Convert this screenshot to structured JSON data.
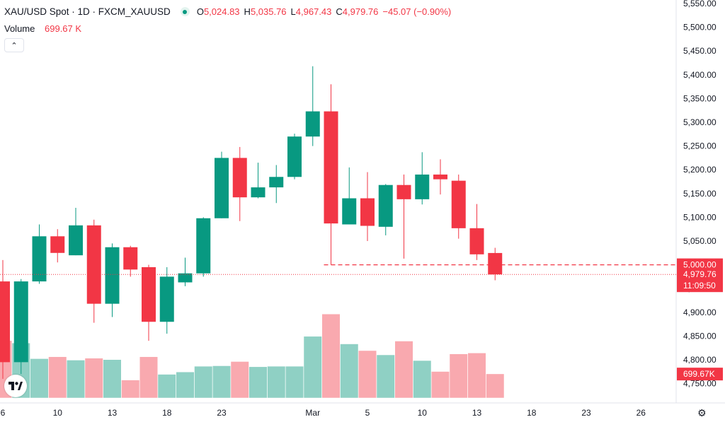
{
  "header": {
    "symbol": "XAU/USD Spot · 1D · FXCM_XAUUSD",
    "o_label": "O",
    "o_value": "5,024.83",
    "h_label": "H",
    "h_value": "5,035.76",
    "l_label": "L",
    "l_value": "4,967.43",
    "c_label": "C",
    "c_value": "4,979.76",
    "change": "−45.07 (−0.90%)"
  },
  "volume_legend": {
    "label": "Volume",
    "value": "699.67 K"
  },
  "price_tags": {
    "level": "5,000.00",
    "last": "4,979.76",
    "countdown": "11:09:50",
    "volume": "699.67K"
  },
  "colors": {
    "up": "#089981",
    "down": "#f23645",
    "vol_up": "#8fd0c4",
    "vol_down": "#f9a9af"
  },
  "icons": [
    "tradingview-logo-icon",
    "settings-icon",
    "chevron-up-icon"
  ],
  "chart_data": {
    "type": "candlestick",
    "title": "XAU/USD Spot · 1D · FXCM_XAUUSD",
    "ylim": [
      4720,
      5560
    ],
    "y_ticks": [
      "5,550.00",
      "5,500.00",
      "5,450.00",
      "5,400.00",
      "5,350.00",
      "5,300.00",
      "5,250.00",
      "5,200.00",
      "5,150.00",
      "5,100.00",
      "5,050.00",
      "5,000.00",
      "4,950.00",
      "4,900.00",
      "4,850.00",
      "4,800.00",
      "4,750.00"
    ],
    "x_ticks": [
      {
        "label": "6",
        "index": 0
      },
      {
        "label": "10",
        "index": 3
      },
      {
        "label": "13",
        "index": 6
      },
      {
        "label": "18",
        "index": 9
      },
      {
        "label": "23",
        "index": 12
      },
      {
        "label": "Mar",
        "index": 17
      },
      {
        "label": "5",
        "index": 20
      },
      {
        "label": "10",
        "index": 23
      },
      {
        "label": "13",
        "index": 26
      },
      {
        "label": "18",
        "index": 29
      },
      {
        "label": "23",
        "index": 32
      },
      {
        "label": "26",
        "index": 35
      }
    ],
    "horizontal_level": 5000,
    "candles": [
      {
        "o": 4965,
        "h": 5010,
        "l": 4760,
        "c": 4795,
        "vol": 4840
      },
      {
        "o": 4795,
        "h": 4970,
        "l": 4770,
        "c": 4965,
        "vol": 4835
      },
      {
        "o": 4965,
        "h": 5085,
        "l": 4960,
        "c": 5060,
        "vol": 4802
      },
      {
        "o": 5060,
        "h": 5075,
        "l": 5005,
        "c": 5025,
        "vol": 4806
      },
      {
        "o": 5020,
        "h": 5120,
        "l": 5020,
        "c": 5083,
        "vol": 4799
      },
      {
        "o": 5083,
        "h": 5095,
        "l": 4878,
        "c": 4918,
        "vol": 4803
      },
      {
        "o": 4918,
        "h": 5045,
        "l": 4890,
        "c": 5037,
        "vol": 4800
      },
      {
        "o": 5037,
        "h": 5040,
        "l": 4975,
        "c": 4990,
        "vol": 4757
      },
      {
        "o": 4995,
        "h": 5000,
        "l": 4840,
        "c": 4880,
        "vol": 4806
      },
      {
        "o": 4880,
        "h": 4995,
        "l": 4855,
        "c": 4975,
        "vol": 4769
      },
      {
        "o": 4963,
        "h": 5015,
        "l": 4955,
        "c": 4982,
        "vol": 4774
      },
      {
        "o": 4982,
        "h": 5100,
        "l": 4975,
        "c": 5098,
        "vol": 4786
      },
      {
        "o": 5098,
        "h": 5238,
        "l": 5098,
        "c": 5225,
        "vol": 4787
      },
      {
        "o": 5225,
        "h": 5248,
        "l": 5092,
        "c": 5142,
        "vol": 4796
      },
      {
        "o": 5142,
        "h": 5215,
        "l": 5140,
        "c": 5163,
        "vol": 4785
      },
      {
        "o": 5163,
        "h": 5210,
        "l": 5130,
        "c": 5185,
        "vol": 4786
      },
      {
        "o": 5185,
        "h": 5276,
        "l": 5180,
        "c": 5270,
        "vol": 4786
      },
      {
        "o": 5270,
        "h": 5418,
        "l": 5250,
        "c": 5323,
        "vol": 4849
      },
      {
        "o": 5323,
        "h": 5380,
        "l": 5000,
        "c": 5087,
        "vol": 4896
      },
      {
        "o": 5085,
        "h": 5205,
        "l": 5085,
        "c": 5140,
        "vol": 4833
      },
      {
        "o": 5140,
        "h": 5195,
        "l": 5050,
        "c": 5082,
        "vol": 4819
      },
      {
        "o": 5080,
        "h": 5170,
        "l": 5062,
        "c": 5168,
        "vol": 4810
      },
      {
        "o": 5168,
        "h": 5190,
        "l": 5013,
        "c": 5138,
        "vol": 4839
      },
      {
        "o": 5138,
        "h": 5237,
        "l": 5127,
        "c": 5190,
        "vol": 4798
      },
      {
        "o": 5190,
        "h": 5222,
        "l": 5148,
        "c": 5180,
        "vol": 4775
      },
      {
        "o": 5177,
        "h": 5190,
        "l": 5055,
        "c": 5077,
        "vol": 4812
      },
      {
        "o": 5077,
        "h": 5128,
        "l": 5010,
        "c": 5022,
        "vol": 4814
      },
      {
        "o": 5024.83,
        "h": 5035.76,
        "l": 4967.43,
        "c": 4979.76,
        "vol": 4770
      }
    ]
  }
}
